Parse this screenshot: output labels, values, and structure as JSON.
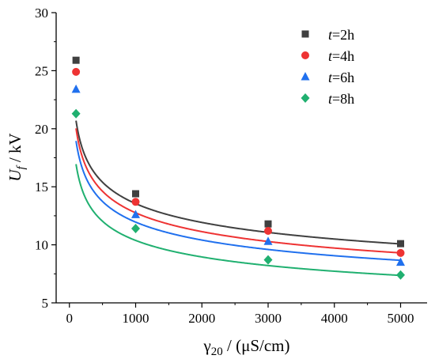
{
  "chart_data": {
    "type": "scatter",
    "xlabel": {
      "symbol": "γ",
      "sub": "20",
      "unit": " / (μS/cm)"
    },
    "ylabel": {
      "symbol": "U",
      "sub": "f",
      "unit": " / kV"
    },
    "xlim": [
      -200,
      5400
    ],
    "ylim": [
      5,
      30
    ],
    "xticks": [
      0,
      1000,
      2000,
      3000,
      4000,
      5000
    ],
    "yticks": [
      5,
      10,
      15,
      20,
      25,
      30
    ],
    "legend_position": "top-right",
    "fit_lines": true,
    "series": [
      {
        "name": "t=2h",
        "label_var": "t",
        "label_rest": "=2h",
        "color": "#404040",
        "marker": "square",
        "x": [
          100,
          1000,
          3000,
          5000
        ],
        "y": [
          25.9,
          14.4,
          11.8,
          10.1
        ],
        "fit": {
          "a": 48.3,
          "b": -0.184
        }
      },
      {
        "name": "t=4h",
        "label_var": "t",
        "label_rest": "=4h",
        "color": "#ee3333",
        "marker": "circle",
        "x": [
          100,
          1000,
          3000,
          5000
        ],
        "y": [
          24.9,
          13.7,
          11.2,
          9.3
        ],
        "fit": {
          "a": 49.4,
          "b": -0.196
        }
      },
      {
        "name": "t=6h",
        "label_var": "t",
        "label_rest": "=6h",
        "color": "#2070ee",
        "marker": "triangle",
        "x": [
          100,
          1000,
          3000,
          5000
        ],
        "y": [
          23.4,
          12.6,
          10.3,
          8.5
        ],
        "fit": {
          "a": 47.6,
          "b": -0.2
        }
      },
      {
        "name": "t=8h",
        "label_var": "t",
        "label_rest": "=8h",
        "color": "#20b070",
        "marker": "diamond",
        "x": [
          100,
          1000,
          3000,
          5000
        ],
        "y": [
          21.3,
          11.4,
          8.7,
          7.4
        ],
        "fit": {
          "a": 45.2,
          "b": -0.213
        }
      }
    ]
  }
}
